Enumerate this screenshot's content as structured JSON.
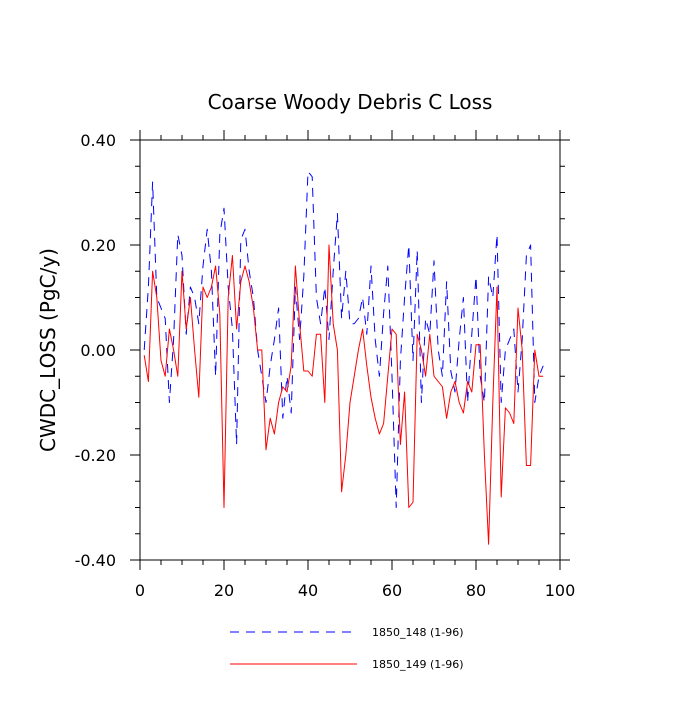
{
  "chart_data": {
    "type": "line",
    "title": "Coarse Woody Debris C Loss",
    "xlabel": "",
    "ylabel": "CWDC_LOSS  (PgC/y)",
    "xlim": [
      0,
      100
    ],
    "ylim": [
      -0.4,
      0.4
    ],
    "xticks": [
      0,
      20,
      40,
      60,
      80,
      100
    ],
    "xtick_labels": [
      "0",
      "20",
      "40",
      "60",
      "80",
      "100"
    ],
    "yticks": [
      -0.4,
      -0.2,
      0.0,
      0.2,
      0.4
    ],
    "ytick_labels": [
      "-0.40",
      "-0.20",
      "0.00",
      "0.20",
      "0.40"
    ],
    "grid": false,
    "legend_position": "bottom-center",
    "series": [
      {
        "name": "1850_148 (1-96)",
        "color": "#0000ff",
        "style": "dashed",
        "x": [
          1,
          2,
          3,
          4,
          5,
          6,
          7,
          8,
          9,
          10,
          11,
          12,
          13,
          14,
          15,
          16,
          17,
          18,
          19,
          20,
          21,
          22,
          23,
          24,
          25,
          26,
          27,
          28,
          29,
          30,
          31,
          32,
          33,
          34,
          35,
          36,
          37,
          38,
          39,
          40,
          41,
          42,
          43,
          44,
          45,
          46,
          47,
          48,
          49,
          50,
          51,
          52,
          53,
          54,
          55,
          56,
          57,
          58,
          59,
          60,
          61,
          62,
          63,
          64,
          65,
          66,
          67,
          68,
          69,
          70,
          71,
          72,
          73,
          74,
          75,
          76,
          77,
          78,
          79,
          80,
          81,
          82,
          83,
          84,
          85,
          86,
          87,
          88,
          89,
          90,
          91,
          92,
          93,
          94,
          95,
          96
        ],
        "values": [
          0.0,
          0.12,
          0.32,
          0.1,
          0.08,
          0.06,
          -0.1,
          0.02,
          0.22,
          0.18,
          0.03,
          0.12,
          0.1,
          0.05,
          0.16,
          0.23,
          0.15,
          -0.05,
          0.22,
          0.27,
          0.12,
          0.04,
          -0.18,
          0.21,
          0.23,
          0.15,
          0.1,
          0.0,
          -0.05,
          -0.1,
          -0.03,
          0.02,
          0.08,
          -0.13,
          -0.05,
          -0.12,
          0.12,
          0.02,
          0.14,
          0.34,
          0.33,
          0.1,
          0.05,
          0.12,
          0.02,
          0.15,
          0.26,
          0.06,
          0.15,
          0.05,
          0.05,
          0.06,
          0.1,
          0.03,
          0.16,
          0.02,
          -0.05,
          0.07,
          0.16,
          -0.05,
          -0.3,
          -0.02,
          0.1,
          0.2,
          -0.02,
          0.19,
          -0.1,
          0.06,
          0.03,
          0.17,
          0.0,
          -0.05,
          0.13,
          -0.04,
          -0.08,
          0.02,
          0.1,
          -0.1,
          0.03,
          0.14,
          -0.05,
          -0.1,
          0.14,
          0.1,
          0.22,
          -0.1,
          0.0,
          0.02,
          0.04,
          -0.08,
          0.02,
          0.18,
          0.2,
          -0.1,
          -0.05,
          -0.03
        ]
      },
      {
        "name": "1850_149 (1-96)",
        "color": "#ff0000",
        "style": "solid",
        "x": [
          1,
          2,
          3,
          4,
          5,
          6,
          7,
          8,
          9,
          10,
          11,
          12,
          13,
          14,
          15,
          16,
          17,
          18,
          19,
          20,
          21,
          22,
          23,
          24,
          25,
          26,
          27,
          28,
          29,
          30,
          31,
          32,
          33,
          34,
          35,
          36,
          37,
          38,
          39,
          40,
          41,
          42,
          43,
          44,
          45,
          46,
          47,
          48,
          49,
          50,
          51,
          52,
          53,
          54,
          55,
          56,
          57,
          58,
          59,
          60,
          61,
          62,
          63,
          64,
          65,
          66,
          67,
          68,
          69,
          70,
          71,
          72,
          73,
          74,
          75,
          76,
          77,
          78,
          79,
          80,
          81,
          82,
          83,
          84,
          85,
          86,
          87,
          88,
          89,
          90,
          91,
          92,
          93,
          94,
          95,
          96
        ],
        "values": [
          -0.01,
          -0.06,
          0.15,
          0.1,
          -0.02,
          -0.05,
          0.04,
          0.0,
          -0.05,
          0.15,
          0.04,
          0.1,
          0.0,
          -0.09,
          0.12,
          0.1,
          0.12,
          0.16,
          0.07,
          -0.3,
          0.1,
          0.18,
          0.04,
          0.13,
          0.16,
          0.13,
          0.08,
          0.0,
          0.0,
          -0.19,
          -0.13,
          -0.16,
          -0.1,
          -0.07,
          -0.08,
          -0.03,
          0.16,
          0.05,
          -0.04,
          -0.04,
          -0.05,
          0.03,
          0.03,
          -0.1,
          0.2,
          0.05,
          0.0,
          -0.27,
          -0.2,
          -0.1,
          -0.05,
          0.0,
          0.04,
          -0.03,
          -0.09,
          -0.13,
          -0.16,
          -0.14,
          -0.05,
          0.04,
          0.03,
          -0.18,
          -0.08,
          -0.3,
          -0.29,
          0.03,
          0.0,
          -0.05,
          0.03,
          -0.05,
          -0.06,
          -0.07,
          -0.13,
          -0.08,
          -0.06,
          -0.1,
          -0.12,
          -0.06,
          -0.08,
          0.01,
          0.01,
          -0.2,
          -0.37,
          -0.1,
          0.12,
          -0.28,
          -0.11,
          -0.12,
          -0.14,
          0.08,
          0.0,
          -0.22,
          -0.22,
          0.0,
          -0.05,
          -0.05
        ]
      }
    ]
  }
}
